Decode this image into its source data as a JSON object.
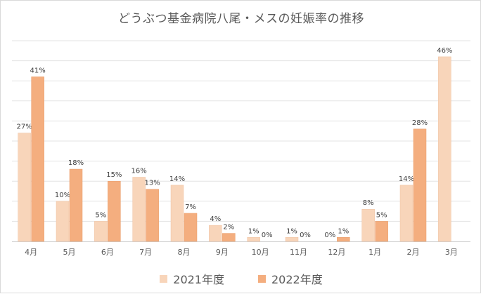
{
  "chart_data": {
    "type": "bar",
    "title": "どうぶつ基金病院八尾・メスの妊娠率の推移",
    "categories": [
      "4月",
      "5月",
      "6月",
      "7月",
      "8月",
      "9月",
      "10月",
      "11月",
      "12月",
      "1月",
      "2月",
      "3月"
    ],
    "series": [
      {
        "name": "2021年度",
        "color": "#F8D5BA",
        "values": [
          27,
          10,
          5,
          16,
          14,
          4,
          1,
          1,
          0,
          8,
          14,
          46
        ],
        "labels": [
          "27%",
          "10%",
          "5%",
          "16%",
          "14%",
          "4%",
          "1%",
          "1%",
          "0%",
          "8%",
          "14%",
          "46%"
        ]
      },
      {
        "name": "2022年度",
        "color": "#F4AE7F",
        "values": [
          41,
          18,
          15,
          13,
          7,
          2,
          0,
          0,
          1,
          5,
          28,
          null
        ],
        "labels": [
          "41%",
          "18%",
          "15%",
          "13%",
          "7%",
          "2%",
          "0%",
          "0%",
          "1%",
          "5%",
          "28%",
          null
        ]
      }
    ],
    "ylim": [
      0,
      50
    ],
    "grid": true,
    "legend": "bottom"
  }
}
